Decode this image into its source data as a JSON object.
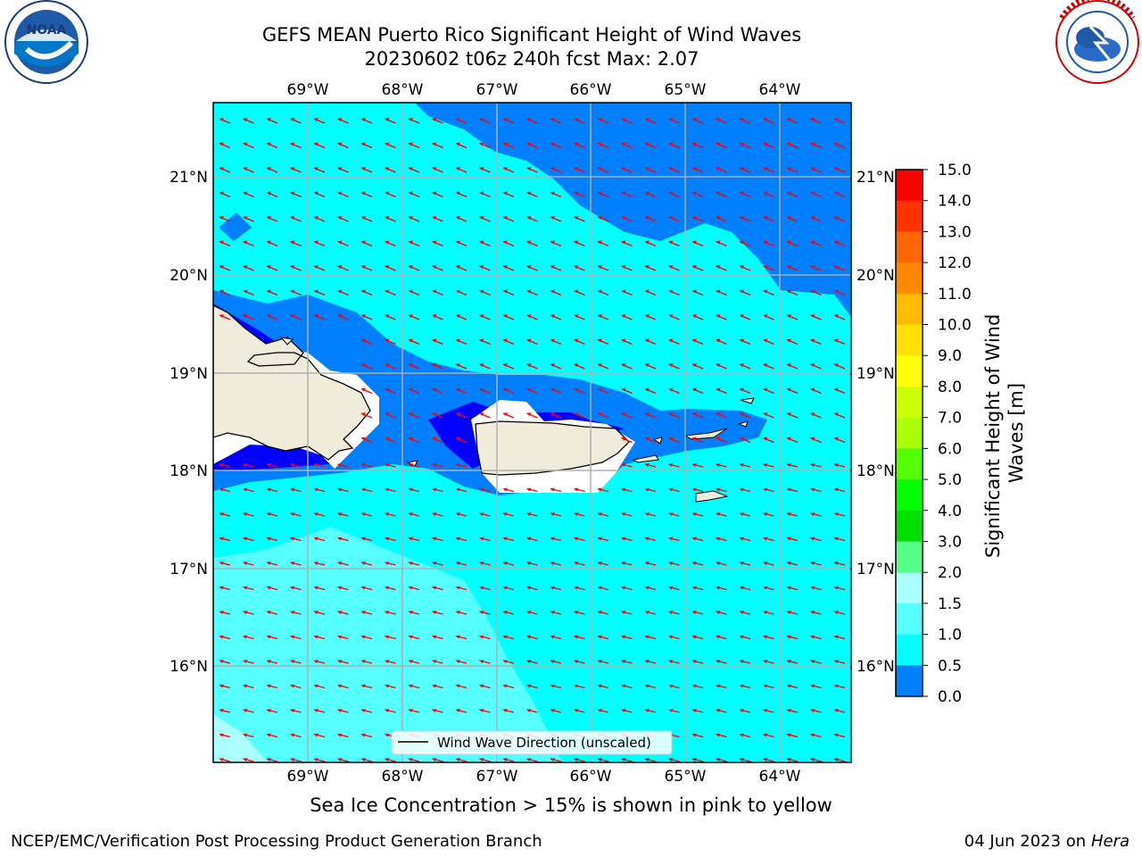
{
  "header": {
    "title_line1": "GEFS MEAN Puerto Rico Significant Height of Wind Waves",
    "title_line2": "20230602 t06z 240h fcst   Max: 2.07"
  },
  "logos": {
    "left": {
      "name": "noaa-logo",
      "text": "NOAA"
    },
    "right": {
      "name": "nws-logo"
    }
  },
  "map": {
    "lon_labels": [
      "69°W",
      "68°W",
      "67°W",
      "66°W",
      "65°W",
      "64°W"
    ],
    "lat_labels": [
      "21°N",
      "20°N",
      "19°N",
      "18°N",
      "17°N",
      "16°N"
    ],
    "legend_label": "Wind Wave Direction (unscaled)",
    "arrow_color": "#ff0000",
    "land_color": "#efecdc"
  },
  "colorbar": {
    "label": "Significant Height of Wind Waves [m]",
    "ticks": [
      "15.0",
      "14.0",
      "13.0",
      "12.0",
      "11.0",
      "10.0",
      "9.0",
      "8.0",
      "7.0",
      "6.0",
      "5.0",
      "4.0",
      "3.0",
      "2.0",
      "1.5",
      "1.0",
      "0.5",
      "0.0"
    ],
    "colors": [
      "#0000ff",
      "#0080ff",
      "#00ffff",
      "#55ffff",
      "#aaffff",
      "#55ff88",
      "#00e000",
      "#00ff00",
      "#55ff00",
      "#aaff00",
      "#ccff00",
      "#ffff00",
      "#ffe000",
      "#ffbb00",
      "#ff8800",
      "#ff6600",
      "#ff3300",
      "#ff0000"
    ]
  },
  "footer": {
    "subtitle": "Sea Ice Concentration > 15% is shown in pink to yellow",
    "left": "NCEP/EMC/Verification Post Processing Product Generation Branch",
    "right_date": "04 Jun 2023 on",
    "right_host": "Hera"
  }
}
